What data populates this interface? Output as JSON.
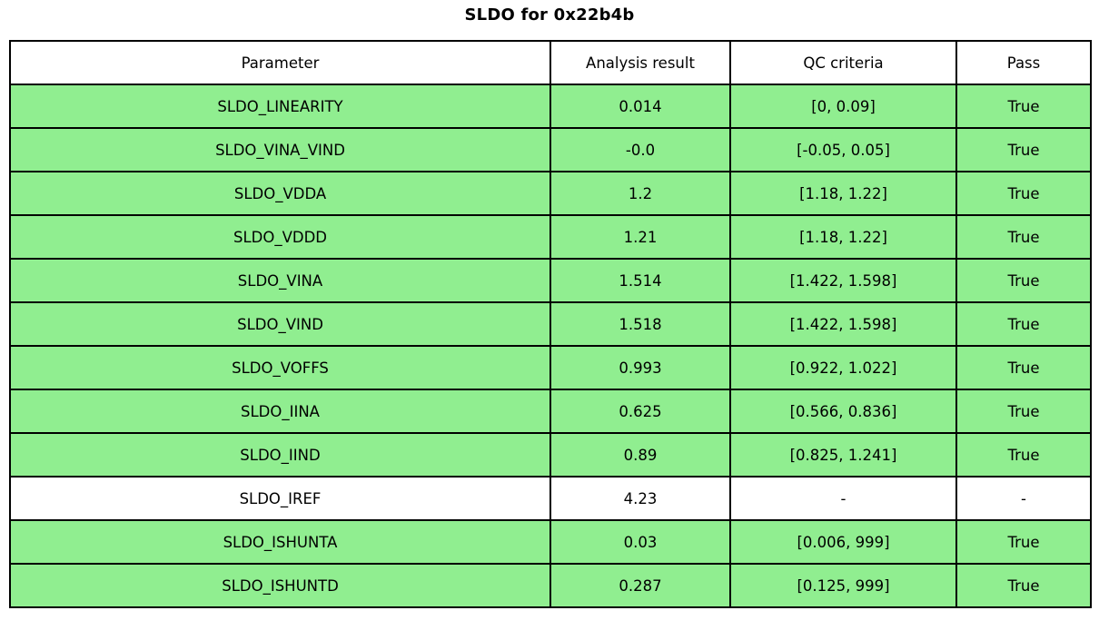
{
  "title": "SLDO for 0x22b4b",
  "colors": {
    "pass_row_green": "#90EE90",
    "no_qc_row_white": "#FFFFFF",
    "border_black": "#000000"
  },
  "table": {
    "headers": [
      "Parameter",
      "Analysis result",
      "QC criteria",
      "Pass"
    ],
    "rows": [
      {
        "parameter": "SLDO_LINEARITY",
        "result": "0.014",
        "criteria": "[0, 0.09]",
        "pass": "True",
        "highlight": true
      },
      {
        "parameter": "SLDO_VINA_VIND",
        "result": "-0.0",
        "criteria": "[-0.05, 0.05]",
        "pass": "True",
        "highlight": true
      },
      {
        "parameter": "SLDO_VDDA",
        "result": "1.2",
        "criteria": "[1.18, 1.22]",
        "pass": "True",
        "highlight": true
      },
      {
        "parameter": "SLDO_VDDD",
        "result": "1.21",
        "criteria": "[1.18, 1.22]",
        "pass": "True",
        "highlight": true
      },
      {
        "parameter": "SLDO_VINA",
        "result": "1.514",
        "criteria": "[1.422, 1.598]",
        "pass": "True",
        "highlight": true
      },
      {
        "parameter": "SLDO_VIND",
        "result": "1.518",
        "criteria": "[1.422, 1.598]",
        "pass": "True",
        "highlight": true
      },
      {
        "parameter": "SLDO_VOFFS",
        "result": "0.993",
        "criteria": "[0.922, 1.022]",
        "pass": "True",
        "highlight": true
      },
      {
        "parameter": "SLDO_IINA",
        "result": "0.625",
        "criteria": "[0.566, 0.836]",
        "pass": "True",
        "highlight": true
      },
      {
        "parameter": "SLDO_IIND",
        "result": "0.89",
        "criteria": "[0.825, 1.241]",
        "pass": "True",
        "highlight": true
      },
      {
        "parameter": "SLDO_IREF",
        "result": "4.23",
        "criteria": "-",
        "pass": "-",
        "highlight": false
      },
      {
        "parameter": "SLDO_ISHUNTA",
        "result": "0.03",
        "criteria": "[0.006, 999]",
        "pass": "True",
        "highlight": true
      },
      {
        "parameter": "SLDO_ISHUNTD",
        "result": "0.287",
        "criteria": "[0.125, 999]",
        "pass": "True",
        "highlight": true
      }
    ]
  }
}
